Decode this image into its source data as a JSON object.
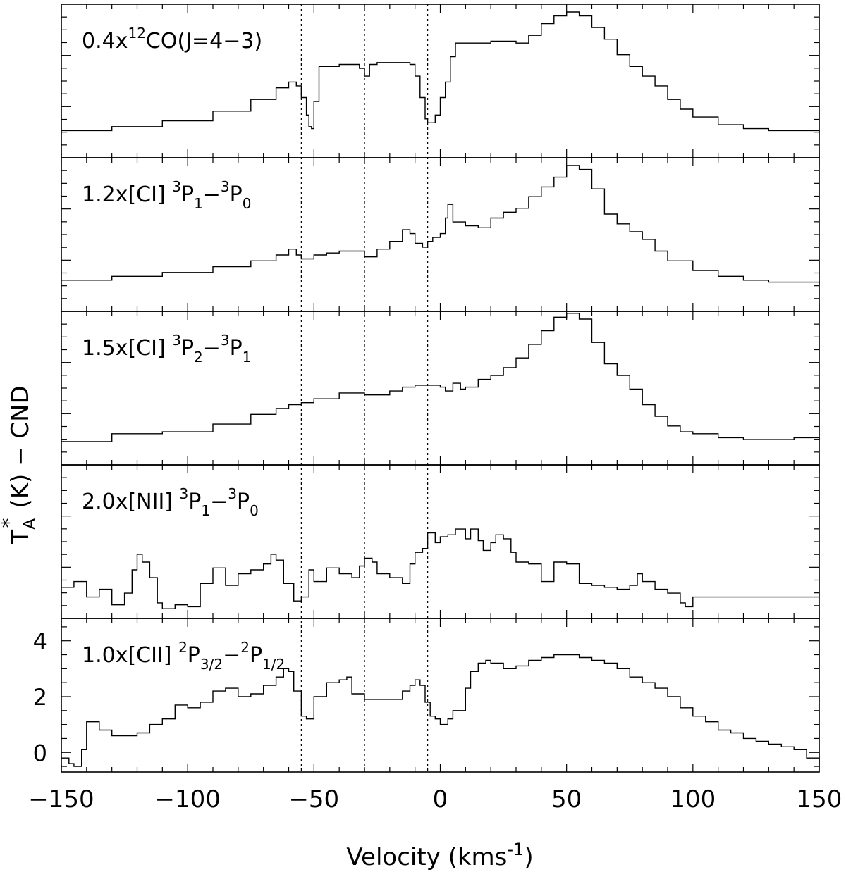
{
  "chart_data": {
    "type": "line",
    "style": "step",
    "xlabel": "Velocity (kms",
    "xlabel_exp": "-1",
    "xlabel_close": ")",
    "ylabel": "T",
    "ylabel_sup": "*",
    "ylabel_sub": "A",
    "ylabel_rest": "(K) − CND",
    "xlim": [
      -150,
      150
    ],
    "x_ticks": [
      -150,
      -100,
      -50,
      0,
      50,
      100,
      150
    ],
    "x_tick_labels": [
      "−150",
      "−100",
      "−50",
      "0",
      "50",
      "100",
      "150"
    ],
    "reference_velocities": [
      -55,
      -30,
      -5
    ],
    "bottom_panel_ylim": [
      -0.7,
      4.8
    ],
    "bottom_panel_y_ticks": [
      0,
      2,
      4
    ],
    "bottom_panel_y_tick_labels": [
      "0",
      "2",
      "4"
    ],
    "panels": [
      {
        "label_parts": [
          {
            "t": "0.4x"
          },
          {
            "t": "12",
            "s": "sup"
          },
          {
            "t": "CO(J=4−3)"
          }
        ],
        "ylim": [
          -0.3,
          7.6
        ],
        "x": [
          -150,
          -130,
          -110,
          -90,
          -75,
          -65,
          -60,
          -57,
          -55,
          -53,
          -52,
          -51,
          -50,
          -48,
          -45,
          -40,
          -35,
          -32,
          -30,
          -28,
          -25,
          -20,
          -15,
          -12,
          -10,
          -8,
          -6,
          -5,
          -4,
          -2,
          0,
          2,
          4,
          6,
          10,
          20,
          30,
          35,
          40,
          45,
          50,
          55,
          60,
          65,
          70,
          75,
          80,
          85,
          90,
          95,
          100,
          110,
          120,
          130,
          140,
          150
        ],
        "values": [
          1.1,
          1.3,
          1.6,
          2.1,
          2.7,
          3.3,
          3.6,
          3.4,
          2.8,
          1.9,
          1.3,
          1.2,
          2.6,
          4.4,
          4.4,
          4.5,
          4.5,
          4.3,
          3.9,
          4.5,
          4.6,
          4.6,
          4.6,
          4.5,
          3.9,
          2.8,
          1.7,
          1.5,
          1.5,
          1.9,
          2.8,
          3.6,
          4.9,
          5.6,
          5.6,
          5.7,
          5.6,
          6.0,
          6.6,
          7.0,
          7.2,
          7.0,
          6.4,
          5.8,
          5.0,
          4.4,
          3.9,
          3.4,
          2.7,
          2.2,
          1.8,
          1.4,
          1.2,
          1.1,
          1.1,
          1.0
        ]
      },
      {
        "label_parts": [
          {
            "t": "1.2x[CI]  "
          },
          {
            "t": "3",
            "s": "sup"
          },
          {
            "t": "P"
          },
          {
            "t": "1",
            "s": "sub"
          },
          {
            "t": "−"
          },
          {
            "t": "3",
            "s": "sup"
          },
          {
            "t": "P"
          },
          {
            "t": "0",
            "s": "sub"
          }
        ],
        "ylim": [
          -0.3,
          7.6
        ],
        "x": [
          -150,
          -130,
          -110,
          -90,
          -75,
          -65,
          -60,
          -57,
          -55,
          -50,
          -45,
          -40,
          -35,
          -30,
          -25,
          -20,
          -15,
          -12,
          -10,
          -7,
          -5,
          -3,
          0,
          2,
          3,
          5,
          10,
          15,
          20,
          25,
          30,
          35,
          40,
          45,
          50,
          55,
          60,
          65,
          70,
          75,
          80,
          85,
          90,
          100,
          110,
          120,
          130,
          140,
          150
        ],
        "values": [
          1.3,
          1.5,
          1.7,
          2.0,
          2.3,
          2.6,
          2.9,
          2.6,
          2.4,
          2.6,
          2.7,
          2.8,
          2.8,
          2.5,
          2.9,
          3.3,
          3.9,
          3.7,
          3.2,
          3.0,
          3.3,
          3.5,
          3.7,
          4.5,
          5.2,
          4.3,
          4.1,
          4.0,
          4.5,
          4.8,
          5.0,
          5.6,
          6.1,
          6.6,
          7.2,
          7.0,
          6.0,
          4.7,
          4.2,
          3.8,
          3.4,
          2.8,
          2.3,
          1.8,
          1.5,
          1.3,
          1.2,
          1.2,
          1.1
        ]
      },
      {
        "label_parts": [
          {
            "t": "1.5x[CI]  "
          },
          {
            "t": "3",
            "s": "sup"
          },
          {
            "t": "P"
          },
          {
            "t": "2",
            "s": "sub"
          },
          {
            "t": "−"
          },
          {
            "t": "3",
            "s": "sup"
          },
          {
            "t": "P"
          },
          {
            "t": "1",
            "s": "sub"
          }
        ],
        "ylim": [
          -0.3,
          7.6
        ],
        "x": [
          -150,
          -130,
          -110,
          -90,
          -75,
          -65,
          -60,
          -55,
          -50,
          -40,
          -35,
          -30,
          -25,
          -20,
          -15,
          -10,
          -5,
          0,
          2,
          5,
          8,
          10,
          15,
          20,
          25,
          30,
          35,
          40,
          45,
          50,
          55,
          60,
          65,
          70,
          75,
          80,
          85,
          90,
          95,
          100,
          110,
          120,
          130,
          140,
          150
        ],
        "values": [
          0.9,
          1.3,
          1.4,
          1.8,
          2.3,
          2.6,
          2.8,
          2.9,
          3.1,
          3.4,
          3.4,
          3.3,
          3.3,
          3.5,
          3.7,
          3.8,
          3.8,
          3.7,
          3.5,
          3.9,
          3.6,
          3.7,
          4.1,
          4.3,
          4.7,
          5.2,
          5.9,
          6.6,
          7.3,
          7.5,
          7.2,
          6.0,
          4.9,
          4.3,
          3.6,
          2.8,
          2.2,
          1.7,
          1.4,
          1.3,
          1.1,
          1.0,
          1.0,
          1.1,
          1.0
        ]
      },
      {
        "label_parts": [
          {
            "t": "2.0x[NII]  "
          },
          {
            "t": "3",
            "s": "sup"
          },
          {
            "t": "P"
          },
          {
            "t": "1",
            "s": "sub"
          },
          {
            "t": "−"
          },
          {
            "t": "3",
            "s": "sup"
          },
          {
            "t": "P"
          },
          {
            "t": "0",
            "s": "sub"
          }
        ],
        "ylim": [
          -0.3,
          7.6
        ],
        "x": [
          -150,
          -145,
          -140,
          -135,
          -130,
          -125,
          -122,
          -120,
          -118,
          -115,
          -112,
          -110,
          -105,
          -100,
          -95,
          -90,
          -85,
          -80,
          -75,
          -70,
          -67,
          -65,
          -62,
          -58,
          -55,
          -52,
          -50,
          -45,
          -40,
          -35,
          -32,
          -30,
          -27,
          -25,
          -20,
          -15,
          -12,
          -10,
          -7,
          -5,
          -2,
          0,
          3,
          6,
          10,
          12,
          15,
          17,
          20,
          22,
          25,
          28,
          30,
          35,
          40,
          45,
          50,
          55,
          60,
          65,
          70,
          75,
          78,
          80,
          85,
          90,
          95,
          97,
          100,
          120,
          150
        ],
        "values": [
          1.3,
          1.6,
          0.8,
          1.2,
          0.4,
          1.0,
          2.2,
          3.0,
          2.6,
          1.8,
          0.5,
          0.2,
          0.4,
          0.3,
          1.5,
          2.3,
          1.4,
          2.0,
          2.2,
          2.5,
          3.0,
          2.7,
          1.5,
          0.6,
          0.8,
          2.2,
          1.6,
          2.3,
          2.0,
          1.8,
          2.4,
          2.8,
          2.6,
          2.0,
          1.8,
          1.5,
          2.5,
          3.1,
          3.3,
          4.1,
          3.6,
          3.9,
          4.0,
          4.3,
          3.8,
          4.3,
          3.7,
          3.2,
          3.6,
          4.0,
          3.8,
          3.1,
          2.6,
          2.5,
          1.6,
          2.6,
          2.5,
          1.5,
          1.4,
          1.3,
          1.2,
          1.4,
          2.0,
          1.6,
          1.2,
          1.0,
          0.5,
          0.3,
          0.8,
          0.8,
          0.8
        ]
      },
      {
        "label_parts": [
          {
            "t": "1.0x[CII]  "
          },
          {
            "t": "2",
            "s": "sup"
          },
          {
            "t": "P"
          },
          {
            "t": "3/2",
            "s": "sub"
          },
          {
            "t": "−"
          },
          {
            "t": "2",
            "s": "sup"
          },
          {
            "t": "P"
          },
          {
            "t": "1/2",
            "s": "sub"
          }
        ],
        "ylim": [
          -0.7,
          4.8
        ],
        "x": [
          -150,
          -147,
          -145,
          -142,
          -140,
          -135,
          -130,
          -125,
          -120,
          -115,
          -110,
          -105,
          -100,
          -95,
          -90,
          -85,
          -80,
          -75,
          -70,
          -65,
          -62,
          -60,
          -58,
          -55,
          -53,
          -50,
          -45,
          -40,
          -37,
          -35,
          -30,
          -25,
          -20,
          -15,
          -12,
          -10,
          -8,
          -6,
          -4,
          -2,
          0,
          3,
          5,
          8,
          10,
          12,
          15,
          18,
          20,
          25,
          30,
          35,
          40,
          45,
          50,
          55,
          60,
          65,
          70,
          75,
          80,
          85,
          90,
          95,
          100,
          105,
          110,
          115,
          120,
          125,
          130,
          135,
          140,
          145,
          150
        ],
        "values": [
          -0.2,
          -0.4,
          -0.5,
          0.1,
          1.1,
          0.8,
          0.6,
          0.6,
          0.7,
          1.0,
          1.2,
          1.7,
          1.6,
          1.8,
          2.2,
          2.3,
          2.0,
          2.1,
          2.4,
          2.7,
          3.0,
          2.9,
          2.2,
          1.3,
          1.2,
          2.0,
          2.5,
          2.6,
          2.7,
          2.1,
          1.9,
          1.9,
          1.9,
          2.2,
          2.4,
          2.6,
          2.4,
          1.8,
          1.3,
          1.2,
          1.0,
          1.2,
          1.5,
          1.5,
          2.3,
          2.9,
          3.2,
          3.3,
          3.2,
          3.0,
          3.1,
          3.3,
          3.4,
          3.5,
          3.5,
          3.4,
          3.3,
          3.2,
          3.0,
          2.7,
          2.5,
          2.3,
          2.0,
          1.6,
          1.3,
          1.1,
          0.8,
          0.7,
          0.5,
          0.4,
          0.3,
          0.2,
          0.1,
          -0.2,
          -0.4
        ]
      }
    ]
  }
}
